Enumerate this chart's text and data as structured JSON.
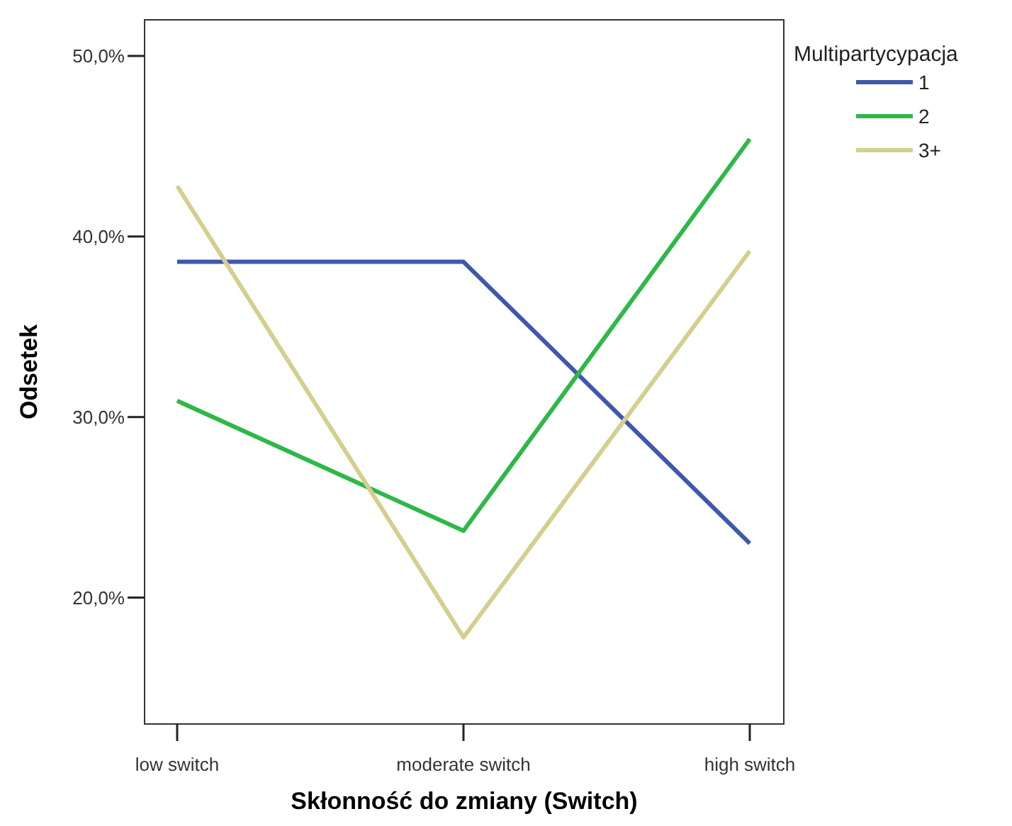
{
  "chart_data": {
    "type": "line",
    "xlabel": "Skłonność do zmiany (Switch)",
    "ylabel": "Odsetek",
    "legend_title": "Multipartycypacja",
    "legend": "top right",
    "grid": false,
    "marker": "none",
    "line_style": "solid",
    "categories": [
      "low switch",
      "moderate switch",
      "high switch"
    ],
    "ylim": [
      13,
      52
    ],
    "yticks": [
      {
        "value": 20,
        "label": "20,0%"
      },
      {
        "value": 30,
        "label": "30,0%"
      },
      {
        "value": 40,
        "label": "40,0%"
      },
      {
        "value": 50,
        "label": "50,0%"
      }
    ],
    "series": [
      {
        "name": "1",
        "color": "#3e58ac",
        "values": [
          38.6,
          38.6,
          23.0
        ]
      },
      {
        "name": "2",
        "color": "#2eb848",
        "values": [
          30.9,
          23.7,
          45.4
        ]
      },
      {
        "name": "3+",
        "color": "#d4cf8e",
        "values": [
          42.8,
          17.8,
          39.2
        ]
      }
    ]
  }
}
